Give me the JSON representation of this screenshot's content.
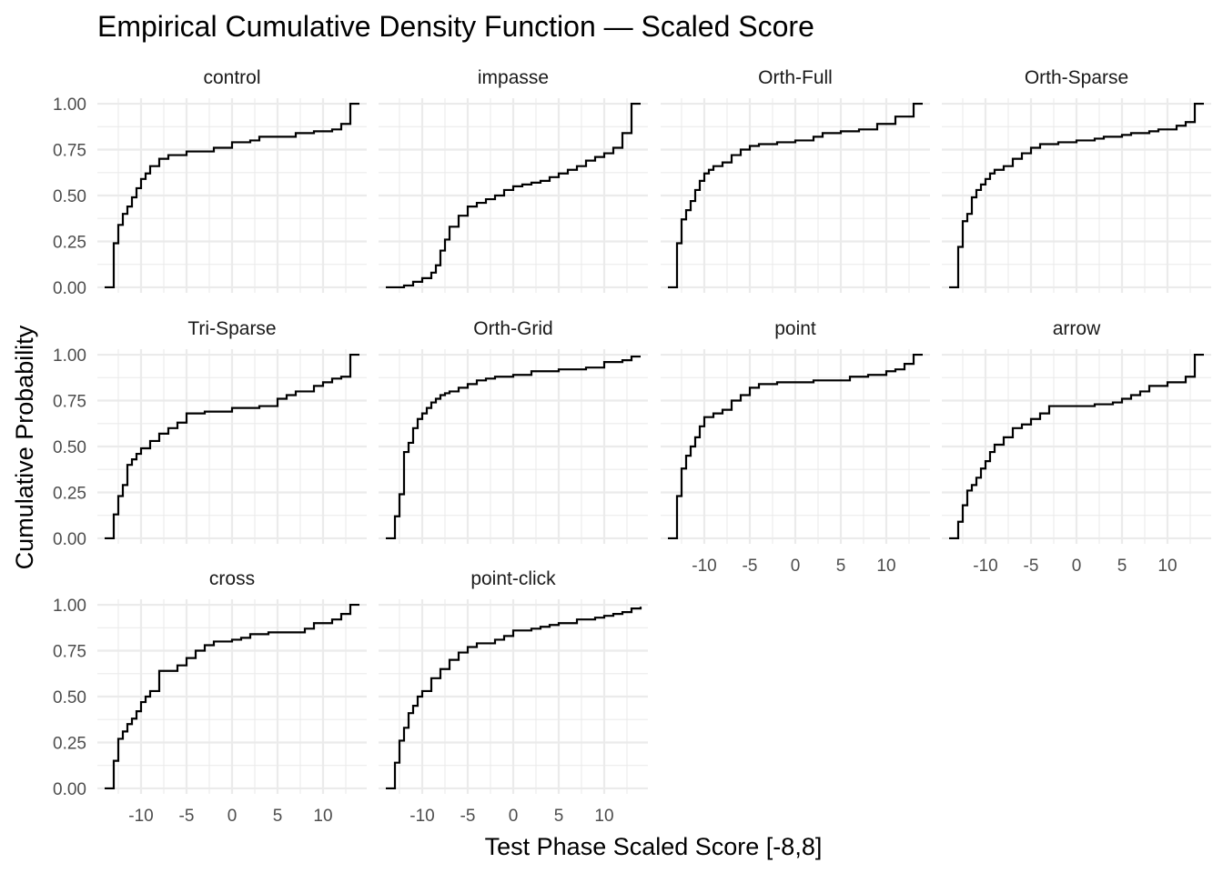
{
  "chart_data": {
    "type": "line",
    "title": "Empirical Cumulative Density Function — Scaled Score",
    "xlabel": "Test Phase Scaled Score [-8,8]",
    "ylabel": "Cumulative Probability",
    "xlim": [
      -14.8,
      14.8
    ],
    "ylim": [
      -0.03,
      1.03
    ],
    "x_ticks": [
      -10,
      -5,
      0,
      5,
      10
    ],
    "x_tick_labels": [
      "-10",
      "-5",
      "0",
      "5",
      "10"
    ],
    "y_ticks": [
      0,
      0.25,
      0.5,
      0.75,
      1
    ],
    "y_tick_labels": [
      "0.00",
      "0.25",
      "0.50",
      "0.75",
      "1.00"
    ],
    "grid": true,
    "step": true,
    "line_color": "#000000",
    "series": [
      {
        "name": "control",
        "x": [
          -13,
          -12.5,
          -12,
          -11.5,
          -11,
          -10.5,
          -10,
          -9.5,
          -9,
          -8,
          -7,
          -5,
          -2,
          0,
          2,
          3,
          7,
          9,
          11,
          12,
          13,
          14
        ],
        "y": [
          0.24,
          0.34,
          0.4,
          0.44,
          0.49,
          0.54,
          0.59,
          0.62,
          0.66,
          0.7,
          0.72,
          0.74,
          0.76,
          0.79,
          0.8,
          0.82,
          0.84,
          0.85,
          0.86,
          0.89,
          1.0,
          1.0
        ]
      },
      {
        "name": "impasse",
        "x": [
          -14,
          -12,
          -11,
          -10,
          -9,
          -8.5,
          -8,
          -7.5,
          -7,
          -6,
          -5,
          -4,
          -3,
          -2,
          -1,
          0,
          1,
          2,
          3,
          4,
          5,
          6,
          7,
          8,
          9,
          10,
          11,
          12,
          13,
          14
        ],
        "y": [
          0.0,
          0.01,
          0.03,
          0.05,
          0.08,
          0.12,
          0.2,
          0.26,
          0.33,
          0.39,
          0.44,
          0.46,
          0.48,
          0.5,
          0.53,
          0.55,
          0.56,
          0.57,
          0.58,
          0.6,
          0.62,
          0.64,
          0.66,
          0.69,
          0.71,
          0.73,
          0.76,
          0.84,
          1.0,
          1.0
        ]
      },
      {
        "name": "Orth-Full",
        "x": [
          -13,
          -12.5,
          -12,
          -11.5,
          -11,
          -10.5,
          -10,
          -9.5,
          -9,
          -8,
          -7,
          -6,
          -5,
          -4,
          -2,
          0,
          2,
          3,
          5,
          7,
          9,
          11,
          13,
          14
        ],
        "y": [
          0.24,
          0.37,
          0.42,
          0.47,
          0.53,
          0.58,
          0.62,
          0.64,
          0.66,
          0.68,
          0.72,
          0.75,
          0.77,
          0.78,
          0.79,
          0.8,
          0.82,
          0.84,
          0.85,
          0.86,
          0.89,
          0.93,
          1.0,
          1.0
        ]
      },
      {
        "name": "Orth-Sparse",
        "x": [
          -13,
          -12.5,
          -12,
          -11.5,
          -11,
          -10.5,
          -10,
          -9.5,
          -9,
          -8,
          -7,
          -6,
          -5,
          -4,
          -2,
          0,
          2,
          3,
          5,
          6,
          8,
          9,
          11,
          12,
          13,
          14
        ],
        "y": [
          0.22,
          0.36,
          0.4,
          0.49,
          0.53,
          0.56,
          0.59,
          0.62,
          0.64,
          0.66,
          0.7,
          0.73,
          0.76,
          0.78,
          0.79,
          0.8,
          0.81,
          0.82,
          0.83,
          0.84,
          0.85,
          0.86,
          0.88,
          0.9,
          1.0,
          1.0
        ]
      },
      {
        "name": "Tri-Sparse",
        "x": [
          -13,
          -12.5,
          -12,
          -11.5,
          -11,
          -10.5,
          -10,
          -9,
          -8,
          -7,
          -6,
          -5,
          -3,
          0,
          3,
          5,
          6,
          7,
          9,
          10,
          11,
          12,
          13,
          14
        ],
        "y": [
          0.13,
          0.23,
          0.29,
          0.4,
          0.43,
          0.46,
          0.49,
          0.53,
          0.57,
          0.6,
          0.63,
          0.68,
          0.69,
          0.71,
          0.72,
          0.76,
          0.78,
          0.8,
          0.83,
          0.85,
          0.87,
          0.88,
          1.0,
          1.0
        ]
      },
      {
        "name": "Orth-Grid",
        "x": [
          -13,
          -12.5,
          -12,
          -11.5,
          -11,
          -10.5,
          -10,
          -9.5,
          -9,
          -8.5,
          -8,
          -7.5,
          -7,
          -6,
          -5,
          -4,
          -3,
          -2,
          0,
          2,
          5,
          8,
          10,
          12,
          13,
          14
        ],
        "y": [
          0.12,
          0.24,
          0.47,
          0.52,
          0.6,
          0.65,
          0.68,
          0.71,
          0.74,
          0.76,
          0.78,
          0.79,
          0.8,
          0.82,
          0.84,
          0.86,
          0.87,
          0.88,
          0.89,
          0.91,
          0.92,
          0.93,
          0.96,
          0.97,
          0.99,
          0.99
        ]
      },
      {
        "name": "point",
        "x": [
          -13,
          -12.5,
          -12,
          -11.5,
          -11,
          -10.5,
          -10,
          -9,
          -8,
          -7,
          -6,
          -5,
          -4,
          -2,
          0,
          2,
          6,
          8,
          10,
          11,
          12,
          13,
          14
        ],
        "y": [
          0.23,
          0.38,
          0.45,
          0.5,
          0.55,
          0.61,
          0.66,
          0.68,
          0.7,
          0.75,
          0.78,
          0.82,
          0.84,
          0.85,
          0.85,
          0.86,
          0.88,
          0.89,
          0.91,
          0.92,
          0.95,
          1.0,
          1.0
        ]
      },
      {
        "name": "arrow",
        "x": [
          -13,
          -12.5,
          -12,
          -11.5,
          -11,
          -10.5,
          -10,
          -9.5,
          -9,
          -8,
          -7,
          -6,
          -5,
          -4,
          -3,
          0,
          2,
          4,
          5,
          6,
          7,
          8,
          10,
          12,
          13,
          14
        ],
        "y": [
          0.09,
          0.18,
          0.26,
          0.29,
          0.33,
          0.38,
          0.42,
          0.47,
          0.51,
          0.55,
          0.6,
          0.62,
          0.65,
          0.68,
          0.72,
          0.72,
          0.73,
          0.74,
          0.76,
          0.78,
          0.8,
          0.83,
          0.85,
          0.88,
          1.0,
          1.0
        ]
      },
      {
        "name": "cross",
        "x": [
          -13,
          -12.5,
          -12,
          -11.5,
          -11,
          -10.5,
          -10,
          -9.5,
          -9,
          -8,
          -6,
          -5,
          -4,
          -3,
          -2,
          0,
          1,
          2,
          4,
          8,
          9,
          11,
          12,
          13,
          14
        ],
        "y": [
          0.15,
          0.27,
          0.31,
          0.35,
          0.38,
          0.42,
          0.47,
          0.5,
          0.53,
          0.64,
          0.67,
          0.71,
          0.75,
          0.78,
          0.8,
          0.81,
          0.82,
          0.84,
          0.85,
          0.87,
          0.9,
          0.92,
          0.95,
          1.0,
          1.0
        ]
      },
      {
        "name": "point-click",
        "x": [
          -13,
          -12.5,
          -12,
          -11.5,
          -11,
          -10.5,
          -10,
          -9,
          -8,
          -7,
          -6,
          -5,
          -4,
          -2,
          -1,
          0,
          2,
          3,
          4,
          5,
          7,
          9,
          10,
          11,
          12,
          13,
          14
        ],
        "y": [
          0.14,
          0.26,
          0.33,
          0.41,
          0.45,
          0.5,
          0.53,
          0.6,
          0.65,
          0.7,
          0.74,
          0.77,
          0.79,
          0.81,
          0.83,
          0.86,
          0.87,
          0.88,
          0.89,
          0.9,
          0.92,
          0.93,
          0.94,
          0.95,
          0.96,
          0.98,
          0.99
        ]
      }
    ]
  }
}
